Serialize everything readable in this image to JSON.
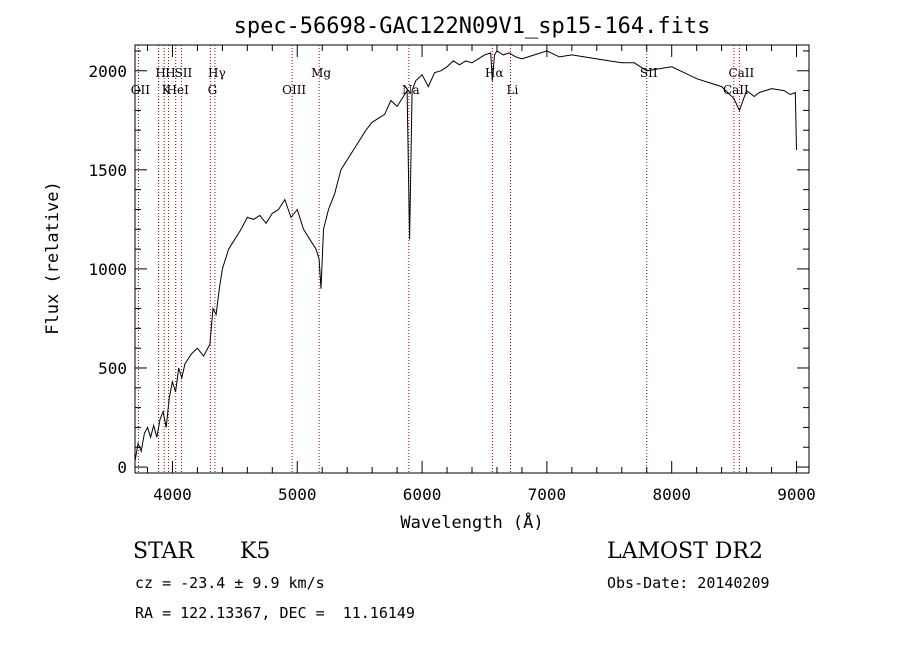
{
  "chart_data": {
    "type": "line",
    "title": "spec-56698-GAC122N09V1_sp15-164.fits",
    "xlabel": "Wavelength (Å)",
    "ylabel": "Flux (relative)",
    "xlim": [
      3700,
      9100
    ],
    "ylim": [
      -30,
      2130
    ],
    "x_ticks": [
      4000,
      5000,
      6000,
      7000,
      8000,
      9000
    ],
    "y_ticks": [
      0,
      500,
      1000,
      1500,
      2000
    ],
    "x_minor_step": 200,
    "y_minor_step": 100,
    "grid": false,
    "line_color": "#000000",
    "marker_color": "#a00000",
    "series": [
      {
        "x": [
          3700,
          3725,
          3750,
          3775,
          3800,
          3825,
          3850,
          3875,
          3900,
          3925,
          3950,
          3975,
          4000,
          4025,
          4050,
          4075,
          4100,
          4150,
          4200,
          4250,
          4300,
          4325,
          4350,
          4375,
          4400,
          4450,
          4500,
          4550,
          4600,
          4650,
          4700,
          4750,
          4800,
          4850,
          4900,
          4950,
          5000,
          5050,
          5100,
          5150,
          5175,
          5190,
          5210,
          5250,
          5300,
          5350,
          5400,
          5450,
          5500,
          5550,
          5600,
          5650,
          5700,
          5750,
          5800,
          5850,
          5880,
          5900,
          5920,
          5950,
          6000,
          6050,
          6100,
          6150,
          6200,
          6250,
          6300,
          6350,
          6400,
          6450,
          6500,
          6550,
          6563,
          6580,
          6600,
          6650,
          6700,
          6750,
          6800,
          6900,
          7000,
          7100,
          7200,
          7300,
          7400,
          7500,
          7600,
          7700,
          7800,
          7900,
          8000,
          8100,
          8200,
          8300,
          8400,
          8498,
          8542,
          8600,
          8662,
          8700,
          8800,
          8900,
          8950,
          8990,
          9000
        ],
        "y": [
          30,
          120,
          80,
          170,
          200,
          150,
          210,
          150,
          240,
          280,
          200,
          350,
          430,
          380,
          500,
          450,
          520,
          570,
          600,
          560,
          620,
          800,
          770,
          900,
          1000,
          1100,
          1150,
          1200,
          1260,
          1250,
          1270,
          1230,
          1280,
          1300,
          1350,
          1260,
          1300,
          1200,
          1150,
          1100,
          1050,
          900,
          1200,
          1300,
          1380,
          1500,
          1550,
          1600,
          1650,
          1700,
          1740,
          1760,
          1780,
          1850,
          1820,
          1870,
          1900,
          1150,
          1900,
          1950,
          1980,
          1920,
          1990,
          2000,
          2020,
          2050,
          2030,
          2050,
          2040,
          2060,
          2080,
          2090,
          1950,
          2080,
          2100,
          2080,
          2090,
          2070,
          2060,
          2080,
          2100,
          2070,
          2080,
          2070,
          2060,
          2050,
          2040,
          2040,
          2000,
          2010,
          2020,
          1990,
          1960,
          1940,
          1920,
          1860,
          1800,
          1900,
          1870,
          1890,
          1910,
          1900,
          1880,
          1890,
          1600
        ]
      }
    ],
    "lines": [
      {
        "x": 3727,
        "labels": [
          "OII"
        ]
      },
      {
        "x": 3889,
        "labels": [
          "H"
        ]
      },
      {
        "x": 3934,
        "labels": [
          "K"
        ]
      },
      {
        "x": 3968,
        "labels": [
          "H"
        ]
      },
      {
        "x": 4026,
        "labels": [
          "HeI"
        ]
      },
      {
        "x": 4072,
        "labels": [
          "SII"
        ]
      },
      {
        "x": 4304,
        "labels": [
          "G"
        ]
      },
      {
        "x": 4340,
        "labels": [
          "Hγ"
        ]
      },
      {
        "x": 4959,
        "labels": [
          "OIII"
        ]
      },
      {
        "x": 5175,
        "labels": [
          "Mg"
        ]
      },
      {
        "x": 5894,
        "labels": [
          "Na"
        ]
      },
      {
        "x": 6563,
        "labels": [
          "Hα"
        ]
      },
      {
        "x": 6708,
        "labels": [
          "Li"
        ]
      },
      {
        "x": 7800,
        "labels": [
          "SII"
        ]
      },
      {
        "x": 8498,
        "labels": [
          "CaII"
        ]
      },
      {
        "x": 8542,
        "labels": [
          "CaII"
        ]
      }
    ]
  },
  "info": {
    "object_type": "STAR",
    "subclass": "K5",
    "survey": "LAMOST DR2",
    "redshift": "cz = -23.4 ± 9.9 km/s",
    "obs_date": "Obs-Date: 20140209",
    "coords": "RA = 122.13367, DEC =  11.16149"
  }
}
